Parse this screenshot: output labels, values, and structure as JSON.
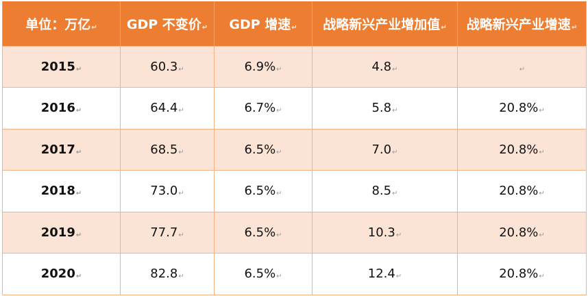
{
  "table": {
    "headers": [
      "单位：万亿",
      "GDP 不变价",
      "GDP 增速",
      "战略新兴产业增加值",
      "战略新兴产业增速"
    ],
    "rows": [
      [
        "2015",
        "60.3",
        "6.9%",
        "4.8",
        ""
      ],
      [
        "2016",
        "64.4",
        "6.7%",
        "5.8",
        "20.8%"
      ],
      [
        "2017",
        "68.5",
        "6.5%",
        "7.0",
        "20.8%"
      ],
      [
        "2018",
        "73.0",
        "6.5%",
        "8.5",
        "20.8%"
      ],
      [
        "2019",
        "77.7",
        "6.5%",
        "10.3",
        "20.8%"
      ],
      [
        "2020",
        "82.8",
        "6.5%",
        "12.4",
        "20.8%"
      ]
    ],
    "paragraph_mark": "↵"
  },
  "colors": {
    "header_bg": "#ED7D31",
    "band_bg": "#FBE4D5",
    "border": "#F4B183"
  }
}
